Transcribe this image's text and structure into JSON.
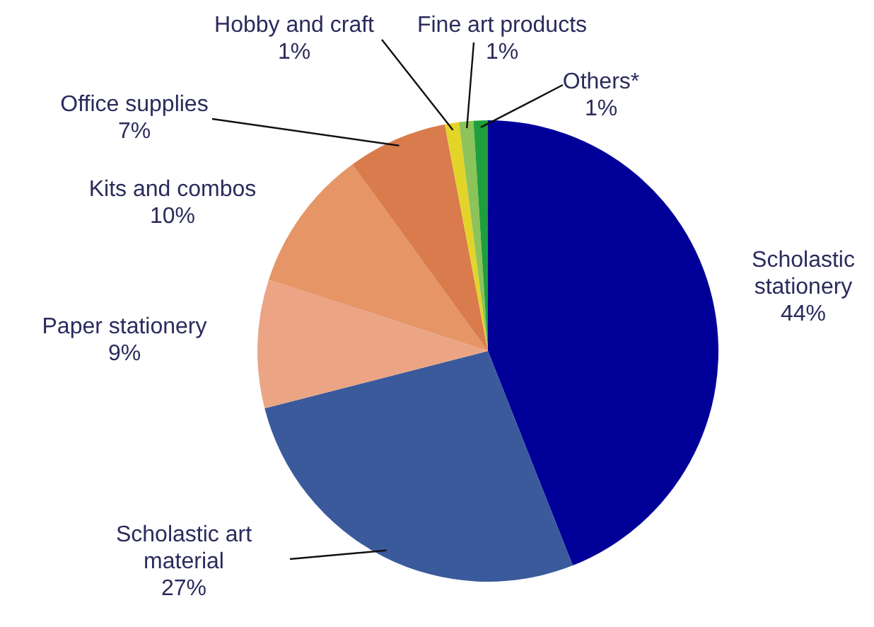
{
  "chart_data": {
    "type": "pie",
    "categories": [
      "Scholastic stationery",
      "Scholastic art material",
      "Paper stationery",
      "Kits and combos",
      "Office supplies",
      "Hobby and craft",
      "Fine art products",
      "Others*"
    ],
    "values": [
      44,
      27,
      9,
      10,
      7,
      1,
      1,
      1
    ],
    "value_labels": [
      "44%",
      "27%",
      "9%",
      "10%",
      "7%",
      "1%",
      "1%",
      "1%"
    ],
    "colors": [
      "#000099",
      "#3a5a9c",
      "#eba585",
      "#e59566",
      "#d97b4c",
      "#e2d428",
      "#8cc35a",
      "#1e9e3c"
    ],
    "legend": false
  }
}
